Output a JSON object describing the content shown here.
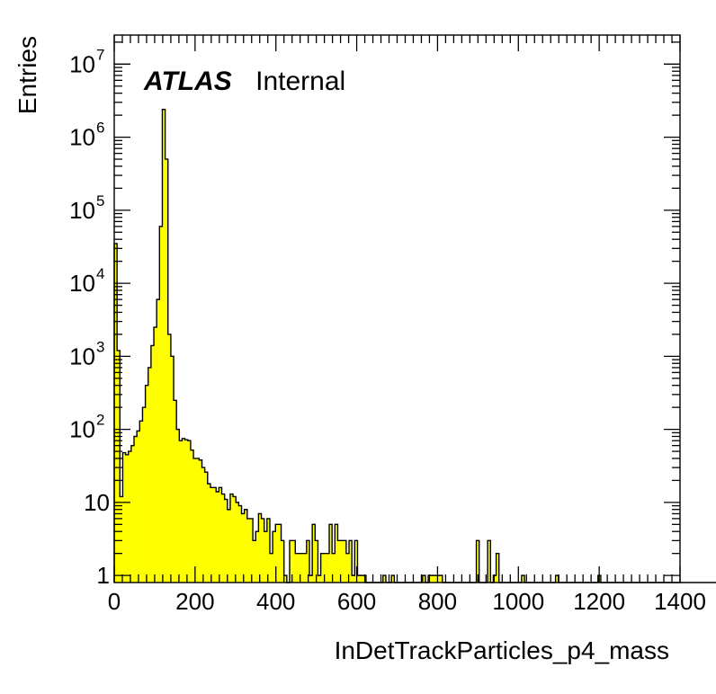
{
  "chart_data": {
    "type": "bar",
    "title": "",
    "xlabel": "InDetTrackParticles_p4_mass",
    "ylabel": "Entries",
    "yscale": "log",
    "xlim": [
      0,
      1400
    ],
    "ylim": [
      0.8,
      25000000
    ],
    "bin_width": 7,
    "fill_color": "#ffff00",
    "line_color": "#000000",
    "x_ticks": [
      "0",
      "200",
      "400",
      "600",
      "800",
      "1000",
      "1200",
      "1400"
    ],
    "x_tick_values": [
      0,
      200,
      400,
      600,
      800,
      1000,
      1200,
      1400
    ],
    "y_ticks": [
      {
        "value": 1,
        "base": "1",
        "exp": ""
      },
      {
        "value": 10,
        "base": "10",
        "exp": ""
      },
      {
        "value": 100,
        "base": "10",
        "exp": "2"
      },
      {
        "value": 1000,
        "base": "10",
        "exp": "3"
      },
      {
        "value": 10000,
        "base": "10",
        "exp": "4"
      },
      {
        "value": 100000,
        "base": "10",
        "exp": "5"
      },
      {
        "value": 1000000,
        "base": "10",
        "exp": "6"
      },
      {
        "value": 10000000,
        "base": "10",
        "exp": "7"
      }
    ],
    "annotation": {
      "bold": "ATLAS",
      "normal": "Internal"
    },
    "values": [
      35000,
      1200,
      12,
      48,
      45,
      50,
      60,
      80,
      95,
      130,
      200,
      400,
      700,
      1400,
      2500,
      6000,
      60000,
      2400000,
      500000,
      2000,
      1000,
      250,
      100,
      70,
      75,
      72,
      70,
      52,
      40,
      40,
      38,
      30,
      26,
      18,
      16,
      16,
      14,
      16,
      13,
      11,
      8,
      13,
      12,
      10,
      9,
      7,
      8,
      6,
      6,
      3,
      4,
      7,
      6,
      4,
      6,
      2,
      4,
      5,
      5,
      3,
      1,
      0.8,
      3,
      3,
      2,
      2,
      2,
      2,
      3,
      1,
      5,
      3,
      1,
      2,
      2,
      2,
      5,
      2,
      5,
      3,
      3,
      3,
      2,
      3,
      1,
      3,
      1,
      1,
      1,
      0.8,
      0.8,
      0.8,
      0.8,
      0.8,
      0.8,
      1,
      0.8,
      0.8,
      1,
      0.8,
      0.8,
      0.8,
      0.8,
      0.8,
      0.8,
      0.8,
      0.8,
      0.8,
      0.8,
      1,
      0.8,
      1,
      1,
      1,
      1,
      1,
      0.8,
      0.8,
      0.8,
      0.8,
      0.8,
      0.8,
      0.8,
      0.8,
      0.8,
      0.8,
      0.8,
      0.8,
      3,
      0.8,
      0.8,
      0.8,
      3,
      0.8,
      1,
      2,
      0.8,
      0.8,
      0.8,
      0.8,
      0.8,
      0.8,
      0.8,
      0.8,
      1,
      0.8,
      0.8,
      0.8,
      0.8,
      0.8,
      0.8,
      0.8,
      0.8,
      0.8,
      0.8,
      0.8,
      1,
      0.8,
      0.8,
      0.8,
      0.8,
      0.8,
      0.8,
      0.8,
      0.8,
      0.8,
      0.8,
      0.8,
      0.8,
      0.8,
      0.8,
      1,
      0.8,
      0.8,
      0.8,
      0.8,
      0.8,
      0.8,
      0.8,
      0.8,
      0.8,
      0.8,
      0.8,
      0.8,
      0.8,
      0.8,
      0.8,
      0.8,
      0.8,
      0.8,
      0.8,
      0.8,
      0.8,
      0.8,
      0.8,
      0.8,
      0.8,
      0.8,
      0.8,
      0.8,
      0.8,
      0.8,
      0.8,
      0.8,
      0.8,
      0.8,
      0.8,
      0.8,
      0.8,
      0.8,
      0.8,
      0.8,
      0.8
    ]
  }
}
